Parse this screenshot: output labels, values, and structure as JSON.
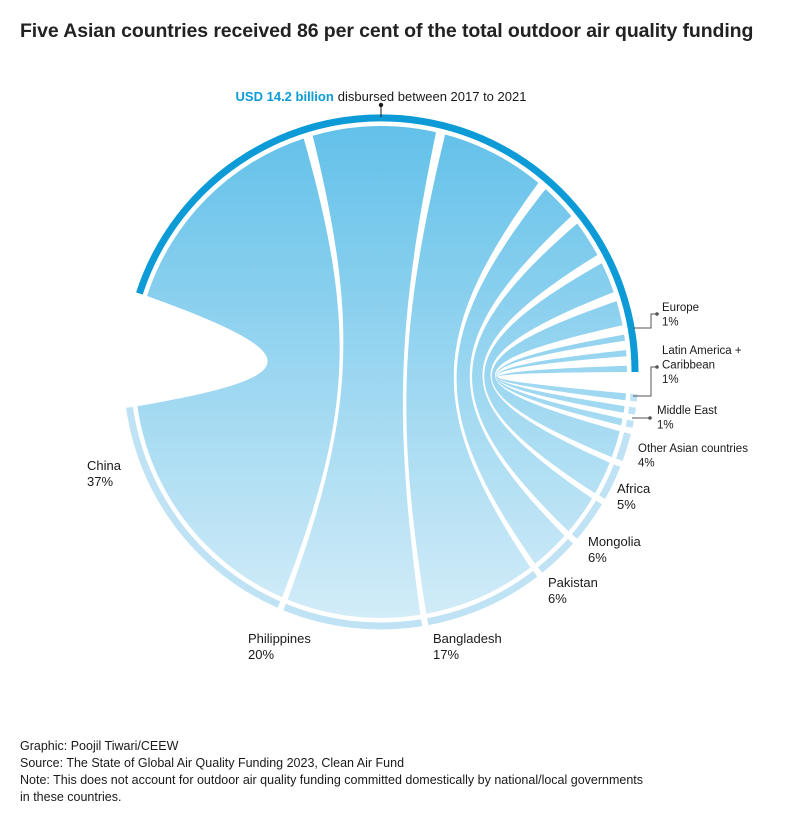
{
  "title": "Five Asian countries received 86 per cent of the total outdoor air quality funding",
  "colors": {
    "accent": "#0c9bd6",
    "ribbon_top": "#4db8e6",
    "ribbon_bottom": "#d3ecf8",
    "arc_light": "#bfe3f5",
    "text": "#1a1a1a"
  },
  "chart_data": {
    "type": "chord",
    "total_label": {
      "highlight": "USD 14.2 billion",
      "rest": "disbursed between 2017 to 2021"
    },
    "series": [
      {
        "name": "China",
        "value": 37,
        "label": "37%"
      },
      {
        "name": "Philippines",
        "value": 20,
        "label": "20%"
      },
      {
        "name": "Bangladesh",
        "value": 17,
        "label": "17%"
      },
      {
        "name": "Pakistan",
        "value": 6,
        "label": "6%"
      },
      {
        "name": "Mongolia",
        "value": 6,
        "label": "6%"
      },
      {
        "name": "Africa",
        "value": 5,
        "label": "5%"
      },
      {
        "name": "Other Asian countries",
        "value": 4,
        "label": "4%"
      },
      {
        "name": "Middle East",
        "value": 1,
        "label": "1%"
      },
      {
        "name": "Latin America + Caribbean",
        "name_lines": [
          "Latin America +",
          "Caribbean"
        ],
        "value": 1,
        "label": "1%"
      },
      {
        "name": "Europe",
        "value": 1,
        "label": "1%"
      }
    ]
  },
  "footer": {
    "graphic": "Graphic: Poojil Tiwari/CEEW",
    "source": "Source: The State of Global Air Quality Funding 2023, Clean Air Fund",
    "note_line1": "Note: This does not account for outdoor air quality funding committed domestically by national/local governments",
    "note_line2": "in these countries."
  }
}
